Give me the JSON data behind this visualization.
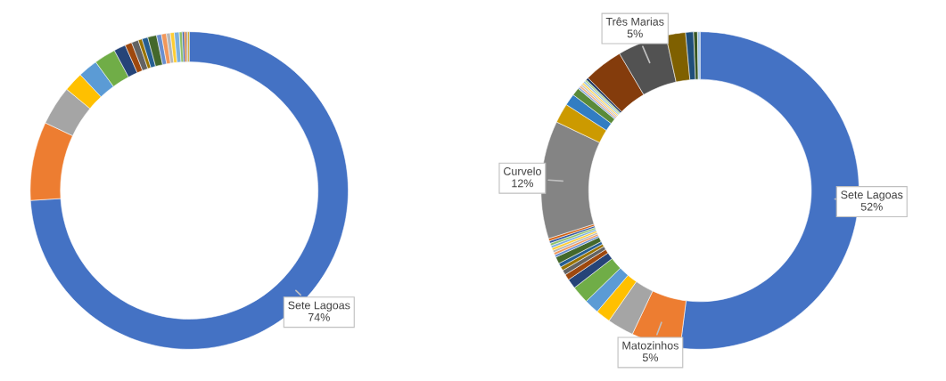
{
  "chart_data": [
    {
      "type": "donut",
      "categories": [
        "Sete Lagoas",
        null,
        null,
        null,
        null,
        null,
        null,
        null,
        null,
        null,
        null,
        null,
        null,
        null,
        null,
        null,
        null,
        null,
        null,
        null,
        null,
        null
      ],
      "values": [
        74,
        8,
        4,
        2,
        2,
        2.2,
        1.2,
        0.7,
        0.7,
        0.4,
        0.6,
        0.9,
        0.5,
        0.5,
        0.4,
        0.4,
        0.5,
        0.3,
        0.2,
        0.2,
        0.15,
        0.15
      ],
      "colors": [
        "#4472c4",
        "#ed7d31",
        "#a5a5a5",
        "#ffc000",
        "#5b9bd5",
        "#70ad47",
        "#264478",
        "#9e480e",
        "#636363",
        "#997300",
        "#255e91",
        "#43682b",
        "#698ed0",
        "#f1975a",
        "#b7b7b7",
        "#ffcd33",
        "#7cafdd",
        "#8cc168",
        "#335aa1",
        "#d26012",
        "#848484",
        "#cc9a00"
      ],
      "value_labels": [
        "74%",
        null,
        null,
        null,
        null,
        null,
        null,
        null,
        null,
        null,
        null,
        null,
        null,
        null,
        null,
        null,
        null,
        null,
        null,
        null,
        null,
        null
      ]
    },
    {
      "type": "donut",
      "categories": [
        "Sete Lagoas",
        "Matozinhos",
        null,
        null,
        null,
        null,
        null,
        null,
        null,
        null,
        null,
        null,
        null,
        null,
        null,
        null,
        null,
        null,
        null,
        null,
        "Curvelo",
        null,
        null,
        null,
        null,
        null,
        null,
        null,
        null,
        null,
        null,
        null,
        "Três Marias",
        null,
        null,
        null,
        null
      ],
      "values": [
        52,
        5,
        2.7,
        1.5,
        1.5,
        1.8,
        1,
        0.6,
        0.5,
        0.4,
        0.4,
        0.7,
        0.25,
        0.25,
        0.25,
        0.25,
        0.25,
        0.25,
        0.25,
        0.25,
        12,
        2,
        1.2,
        0.8,
        0.2,
        0.2,
        0.2,
        0.2,
        0.2,
        0.2,
        0.25,
        4,
        5,
        2,
        0.8,
        0.4,
        0.25
      ],
      "colors": [
        "#4472c4",
        "#ed7d31",
        "#a5a5a5",
        "#ffc000",
        "#5b9bd5",
        "#70ad47",
        "#264478",
        "#9e480e",
        "#636363",
        "#997300",
        "#255e91",
        "#43682b",
        "#698ed0",
        "#f1975a",
        "#b7b7b7",
        "#ffcd33",
        "#7cafdd",
        "#8cc168",
        "#335aa1",
        "#d26012",
        "#848484",
        "#cc9a00",
        "#327dc2",
        "#5a8a39",
        "#8faadc",
        "#f4b183",
        "#c9c9c9",
        "#ffd966",
        "#9dc3e6",
        "#a9d18e",
        "#203864",
        "#843c0c",
        "#525252",
        "#7f6000",
        "#1f4e79",
        "#385723",
        "#9dc3e6"
      ],
      "value_labels": [
        "52%",
        "5%",
        null,
        null,
        null,
        null,
        null,
        null,
        null,
        null,
        null,
        null,
        null,
        null,
        null,
        null,
        null,
        null,
        null,
        null,
        "12%",
        null,
        null,
        null,
        null,
        null,
        null,
        null,
        null,
        null,
        null,
        null,
        "5%",
        null,
        null,
        null,
        null
      ]
    }
  ]
}
